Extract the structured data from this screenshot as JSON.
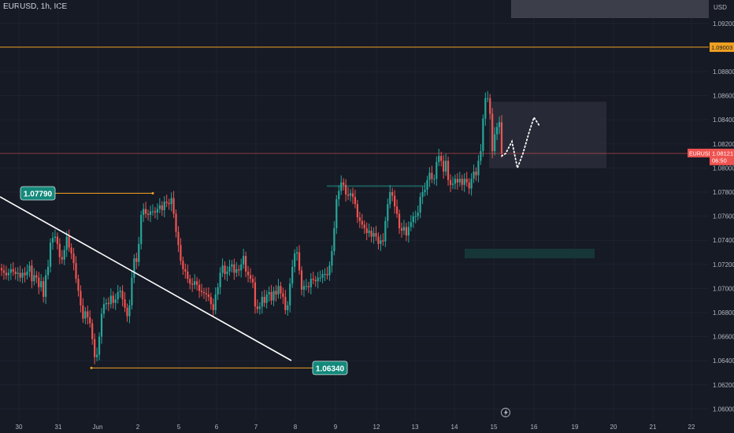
{
  "header": {
    "symbol_line": "EURUSD, 1h, ICE"
  },
  "colors": {
    "background": "#161a25",
    "bull_candle": "#26a69a",
    "bear_candle": "#ef5350",
    "horizontal_line": "#f0a020",
    "trendline": "#ffffff",
    "price_line": "#ef5350",
    "label_bg": "#13897b"
  },
  "chart_data": {
    "type": "candlestick",
    "symbol": "EURUSD",
    "interval": "1h",
    "source": "ICE",
    "currency": "USD",
    "x_tick_labels": [
      "30",
      "31",
      "Jun",
      "2",
      "5",
      "6",
      "7",
      "8",
      "9",
      "12",
      "13",
      "14",
      "15",
      "16",
      "19",
      "20",
      "21",
      "22"
    ],
    "y_tick_labels": [
      "1.09200",
      "1.08800",
      "1.08600",
      "1.08400",
      "1.08200",
      "1.08000",
      "1.07800",
      "1.07600",
      "1.07400",
      "1.07200",
      "1.07000",
      "1.06800",
      "1.06600",
      "1.06400",
      "1.06200",
      "1.06000"
    ],
    "ylim": [
      1.0597,
      1.0929
    ],
    "current_price": {
      "value": "1.08121",
      "symbol": "EURUSD",
      "countdown": "06:50"
    },
    "level_label": "1.09003",
    "annotations": [
      {
        "text": "1.07790",
        "price": 1.0779
      },
      {
        "text": "1.06340",
        "price": 1.0634
      }
    ],
    "horizontal_levels": [
      1.09003,
      1.0785
    ],
    "supply_zone": [
      1.0725,
      1.0733
    ],
    "projection_box": [
      1.08,
      1.0855
    ],
    "projected_path": [
      1.081,
      1.0812,
      1.0822,
      1.08,
      1.0812,
      1.083,
      1.0842,
      1.0835
    ],
    "candles_close": [
      1.0715,
      1.0713,
      1.0711,
      1.0713,
      1.0716,
      1.0714,
      1.0712,
      1.0713,
      1.0709,
      1.0713,
      1.0711,
      1.0714,
      1.0719,
      1.0706,
      1.0711,
      1.0709,
      1.0701,
      1.0706,
      1.0693,
      1.0711,
      1.0718,
      1.0738,
      1.0742,
      1.0743,
      1.0737,
      1.0726,
      1.0724,
      1.0732,
      1.0743,
      1.0734,
      1.0729,
      1.0721,
      1.0708,
      1.0698,
      1.0686,
      1.0675,
      1.0681,
      1.0676,
      1.0671,
      1.0658,
      1.0643,
      1.0645,
      1.066,
      1.0679,
      1.0687,
      1.0688,
      1.0687,
      1.0694,
      1.0688,
      1.0691,
      1.0697,
      1.0698,
      1.0691,
      1.0684,
      1.0677,
      1.0686,
      1.0709,
      1.0725,
      1.0722,
      1.0737,
      1.0761,
      1.0766,
      1.0762,
      1.0761,
      1.0764,
      1.0764,
      1.0763,
      1.0766,
      1.0769,
      1.0765,
      1.0772,
      1.0771,
      1.077,
      1.0775,
      1.0762,
      1.0747,
      1.0736,
      1.0723,
      1.0716,
      1.0714,
      1.0708,
      1.0704,
      1.0703,
      1.0706,
      1.0703,
      1.0698,
      1.0697,
      1.0696,
      1.0695,
      1.0693,
      1.0687,
      1.0682,
      1.0695,
      1.0701,
      1.0713,
      1.0719,
      1.0712,
      1.0714,
      1.0718,
      1.072,
      1.0713,
      1.0716,
      1.0715,
      1.072,
      1.0727,
      1.0714,
      1.0711,
      1.0708,
      1.0705,
      1.0685,
      1.0683,
      1.0685,
      1.0693,
      1.0688,
      1.0695,
      1.0697,
      1.069,
      1.0698,
      1.0695,
      1.0702,
      1.0696,
      1.0693,
      1.0682,
      1.0686,
      1.0704,
      1.0718,
      1.0729,
      1.073,
      1.0715,
      1.0699,
      1.0702,
      1.0702,
      1.0701,
      1.0708,
      1.0707,
      1.0706,
      1.0709,
      1.0709,
      1.0712,
      1.0712,
      1.0711,
      1.0719,
      1.0731,
      1.075,
      1.0774,
      1.0781,
      1.0788,
      1.0786,
      1.0778,
      1.0777,
      1.0779,
      1.0776,
      1.077,
      1.0759,
      1.0756,
      1.0753,
      1.075,
      1.0746,
      1.0748,
      1.0743,
      1.0746,
      1.0743,
      1.0737,
      1.074,
      1.0739,
      1.0756,
      1.077,
      1.078,
      1.0777,
      1.0768,
      1.0762,
      1.075,
      1.0748,
      1.0751,
      1.0744,
      1.0751,
      1.0755,
      1.076,
      1.076,
      1.0763,
      1.0776,
      1.078,
      1.0782,
      1.079,
      1.0796,
      1.0791,
      1.0791,
      1.0805,
      1.081,
      1.0806,
      1.0797,
      1.0806,
      1.079,
      1.0786,
      1.0787,
      1.0791,
      1.0788,
      1.0791,
      1.0786,
      1.0791,
      1.0788,
      1.0783,
      1.0791,
      1.0797,
      1.0794,
      1.0806,
      1.0814,
      1.0841,
      1.0858,
      1.0858,
      1.0845,
      1.0814,
      1.0828,
      1.0834,
      1.0838,
      1.0812
    ]
  }
}
